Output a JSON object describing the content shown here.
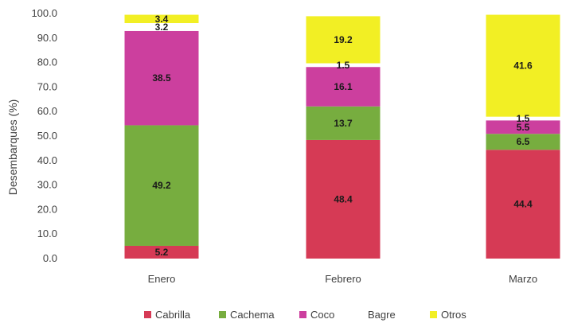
{
  "chart_data": {
    "type": "bar",
    "stacked": true,
    "categories": [
      "Enero",
      "Febrero",
      "Marzo"
    ],
    "ylabel": "Desembarques (%)",
    "ylim": [
      0,
      100
    ],
    "yticks": [
      "0.0",
      "10.0",
      "20.0",
      "30.0",
      "40.0",
      "50.0",
      "60.0",
      "70.0",
      "80.0",
      "90.0",
      "100.0"
    ],
    "grid": false,
    "legend_position": "bottom",
    "series": [
      {
        "name": "Cabrilla",
        "color": "#d63a55",
        "values": [
          5.2,
          48.4,
          44.4
        ],
        "labels": [
          "5.2",
          "48.4",
          "44.4"
        ]
      },
      {
        "name": "Cachema",
        "color": "#77ad3f",
        "values": [
          49.2,
          13.7,
          6.5
        ],
        "labels": [
          "49.2",
          "13.7",
          "6.5"
        ]
      },
      {
        "name": "Coco",
        "color": "#cc3f9e",
        "values": [
          38.5,
          16.1,
          5.5
        ],
        "labels": [
          "38.5",
          "16.1",
          "5.5"
        ]
      },
      {
        "name": "Bagre",
        "color": "#ffffff",
        "values": [
          3.2,
          1.5,
          1.5
        ],
        "labels": [
          "3.2",
          "1.5",
          "1.5"
        ]
      },
      {
        "name": "Otros",
        "color": "#f2ef24",
        "values": [
          3.4,
          19.2,
          41.6
        ],
        "labels": [
          "3.4",
          "19.2",
          "41.6"
        ]
      }
    ]
  }
}
